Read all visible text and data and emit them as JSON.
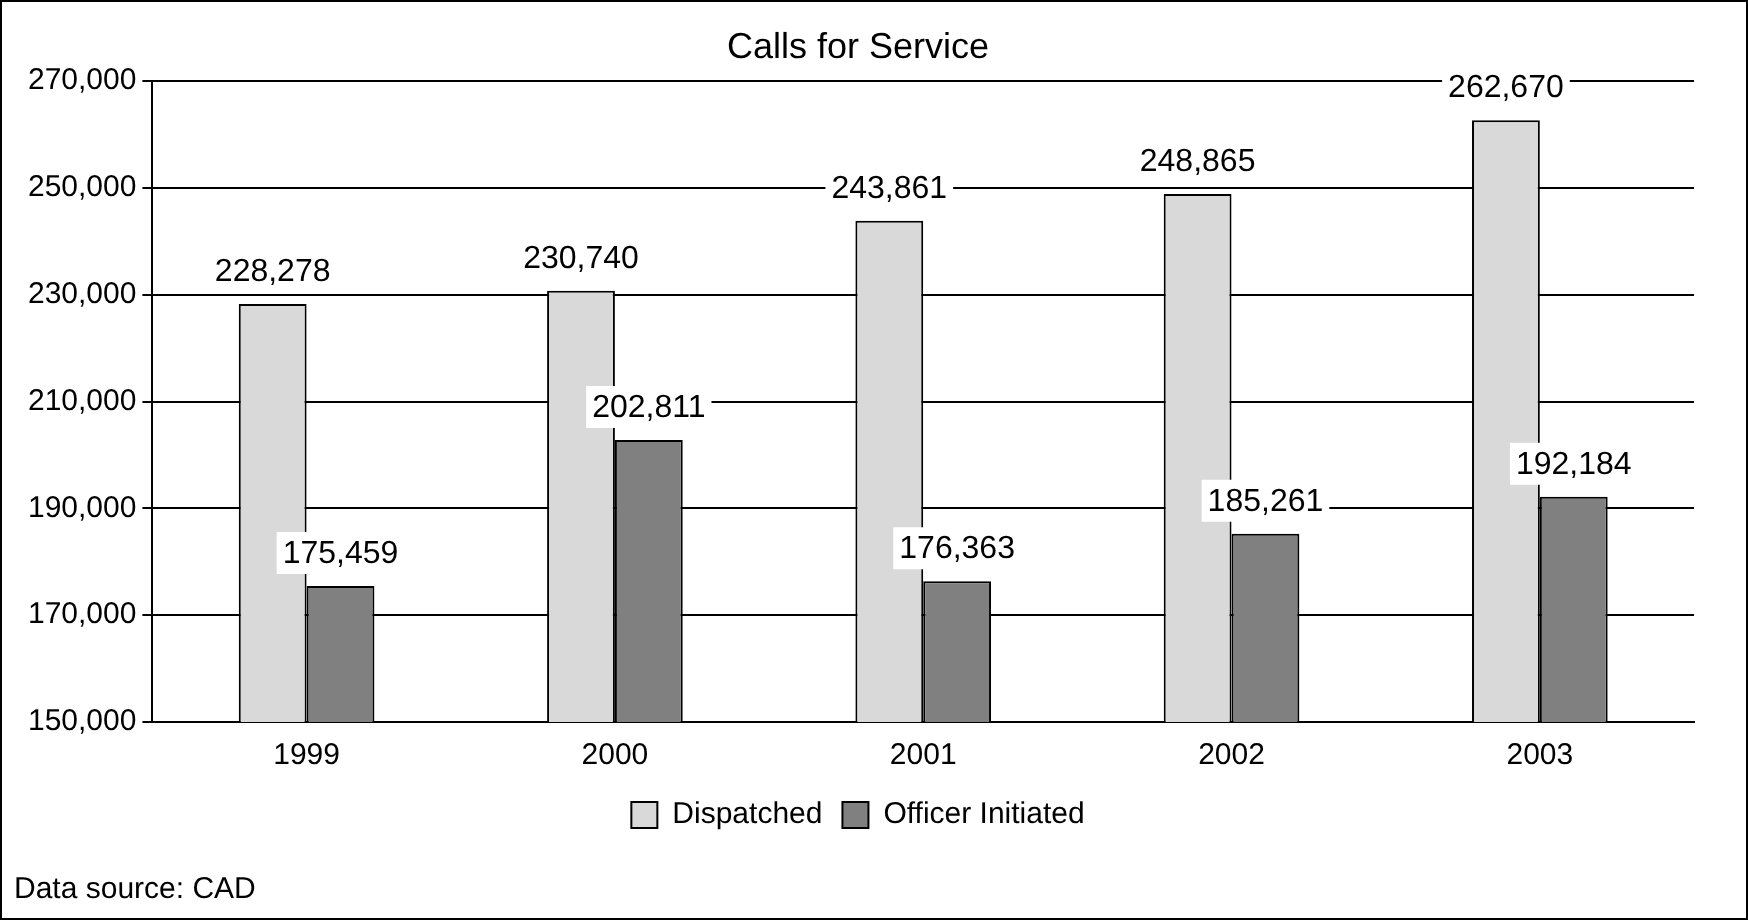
{
  "chart_data": {
    "type": "bar",
    "title": "Calls for Service",
    "categories": [
      "1999",
      "2000",
      "2001",
      "2002",
      "2003"
    ],
    "series": [
      {
        "name": "Dispatched",
        "color": "#d9d9d9",
        "values": [
          228278,
          230740,
          243861,
          248865,
          262670
        ],
        "value_labels": [
          "228,278",
          "230,740",
          "243,861",
          "248,865",
          "262,670"
        ]
      },
      {
        "name": "Officer Initiated",
        "color": "#808080",
        "values": [
          175459,
          202811,
          176363,
          185261,
          192184
        ],
        "value_labels": [
          "175,459",
          "202,811",
          "176,363",
          "185,261",
          "192,184"
        ]
      }
    ],
    "ylim": [
      150000,
      270000
    ],
    "yticks": [
      {
        "value": 150000,
        "label": "150,000"
      },
      {
        "value": 170000,
        "label": "170,000"
      },
      {
        "value": 190000,
        "label": "190,000"
      },
      {
        "value": 210000,
        "label": "210,000"
      },
      {
        "value": 230000,
        "label": "230,000"
      },
      {
        "value": 250000,
        "label": "250,000"
      },
      {
        "value": 270000,
        "label": "270,000"
      }
    ],
    "grid": "y",
    "legend": "bottom",
    "annotations": [
      "Data source: CAD"
    ]
  }
}
